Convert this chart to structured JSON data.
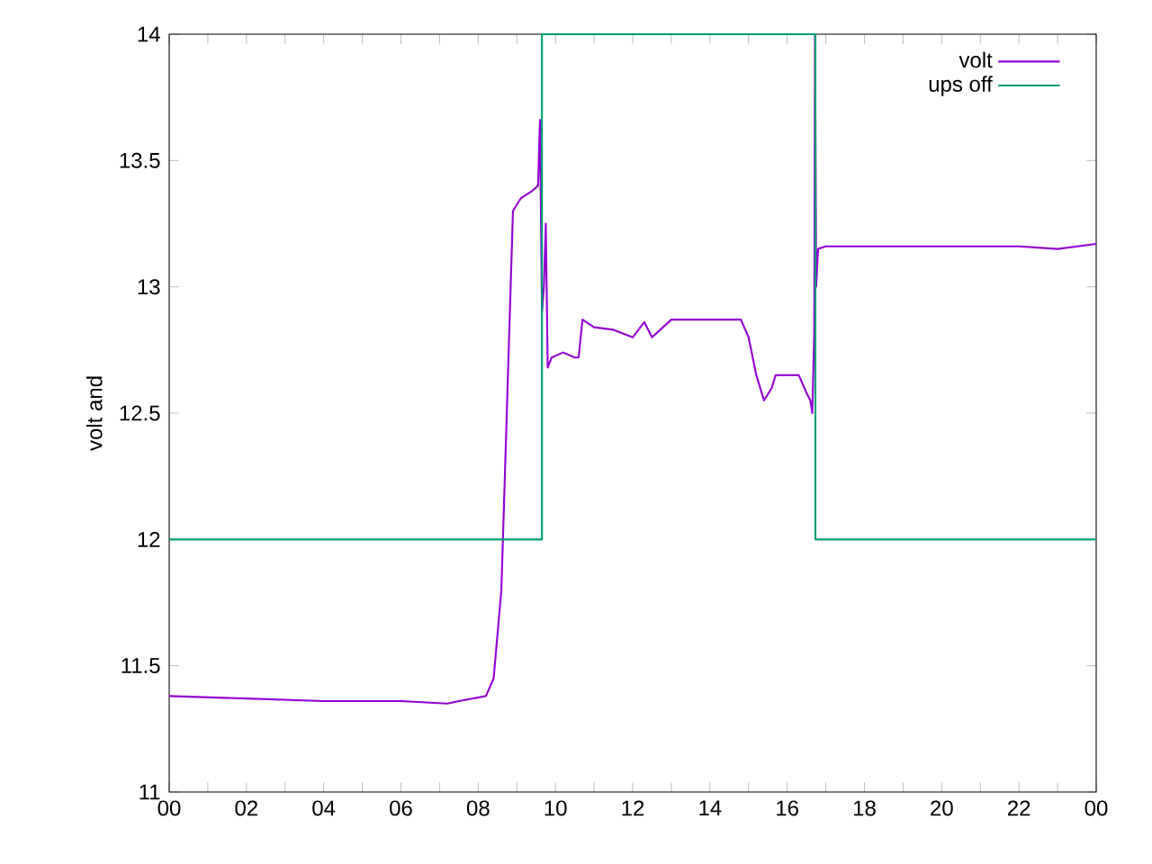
{
  "chart_data": {
    "type": "line",
    "ylabel": "volt and",
    "xlim": [
      0,
      24
    ],
    "ylim": [
      11,
      14
    ],
    "xticks": [
      {
        "value": 0,
        "label": "00"
      },
      {
        "value": 1,
        "label": null
      },
      {
        "value": 2,
        "label": "02"
      },
      {
        "value": 3,
        "label": null
      },
      {
        "value": 4,
        "label": "04"
      },
      {
        "value": 5,
        "label": null
      },
      {
        "value": 6,
        "label": "06"
      },
      {
        "value": 7,
        "label": null
      },
      {
        "value": 8,
        "label": "08"
      },
      {
        "value": 9,
        "label": null
      },
      {
        "value": 10,
        "label": "10"
      },
      {
        "value": 11,
        "label": null
      },
      {
        "value": 12,
        "label": "12"
      },
      {
        "value": 13,
        "label": null
      },
      {
        "value": 14,
        "label": "14"
      },
      {
        "value": 15,
        "label": null
      },
      {
        "value": 16,
        "label": "16"
      },
      {
        "value": 17,
        "label": null
      },
      {
        "value": 18,
        "label": "18"
      },
      {
        "value": 19,
        "label": null
      },
      {
        "value": 20,
        "label": "20"
      },
      {
        "value": 21,
        "label": null
      },
      {
        "value": 22,
        "label": "22"
      },
      {
        "value": 23,
        "label": null
      },
      {
        "value": 24,
        "label": "00"
      }
    ],
    "yticks": [
      11,
      11.5,
      12,
      12.5,
      13,
      13.5,
      14
    ],
    "legend": "top right",
    "grid": false,
    "marker": "none",
    "line_style": "solid",
    "series": [
      {
        "name": "volt",
        "color": "#9400d3",
        "x": [
          0,
          2,
          4,
          6,
          7.2,
          7.5,
          8.2,
          8.4,
          8.6,
          8.7,
          8.8,
          8.9,
          9.1,
          9.4,
          9.55,
          9.6,
          9.65,
          9.7,
          9.75,
          9.8,
          9.9,
          10.2,
          10.5,
          10.6,
          10.7,
          11,
          11.5,
          12,
          12.3,
          12.5,
          13,
          14,
          14.8,
          15,
          15.2,
          15.4,
          15.6,
          15.7,
          16.3,
          16.5,
          16.6,
          16.65,
          16.7,
          16.72,
          16.75,
          16.8,
          17,
          20,
          22,
          23,
          24
        ],
        "values": [
          11.38,
          11.37,
          11.36,
          11.36,
          11.35,
          11.36,
          11.38,
          11.45,
          11.8,
          12.3,
          12.8,
          13.3,
          13.35,
          13.38,
          13.4,
          13.66,
          12.9,
          13.0,
          13.25,
          12.68,
          12.72,
          12.74,
          12.72,
          12.72,
          12.87,
          12.84,
          12.83,
          12.8,
          12.86,
          12.8,
          12.87,
          12.87,
          12.87,
          12.8,
          12.65,
          12.55,
          12.6,
          12.65,
          12.65,
          12.58,
          12.55,
          12.5,
          12.82,
          14,
          13.0,
          13.15,
          13.16,
          13.16,
          13.16,
          13.15,
          13.17
        ]
      },
      {
        "name": "ups off",
        "color": "#009e73",
        "x": [
          0,
          9.65,
          9.65,
          16.73,
          16.73,
          24
        ],
        "values": [
          12,
          12,
          14,
          14,
          12,
          12
        ]
      }
    ]
  }
}
